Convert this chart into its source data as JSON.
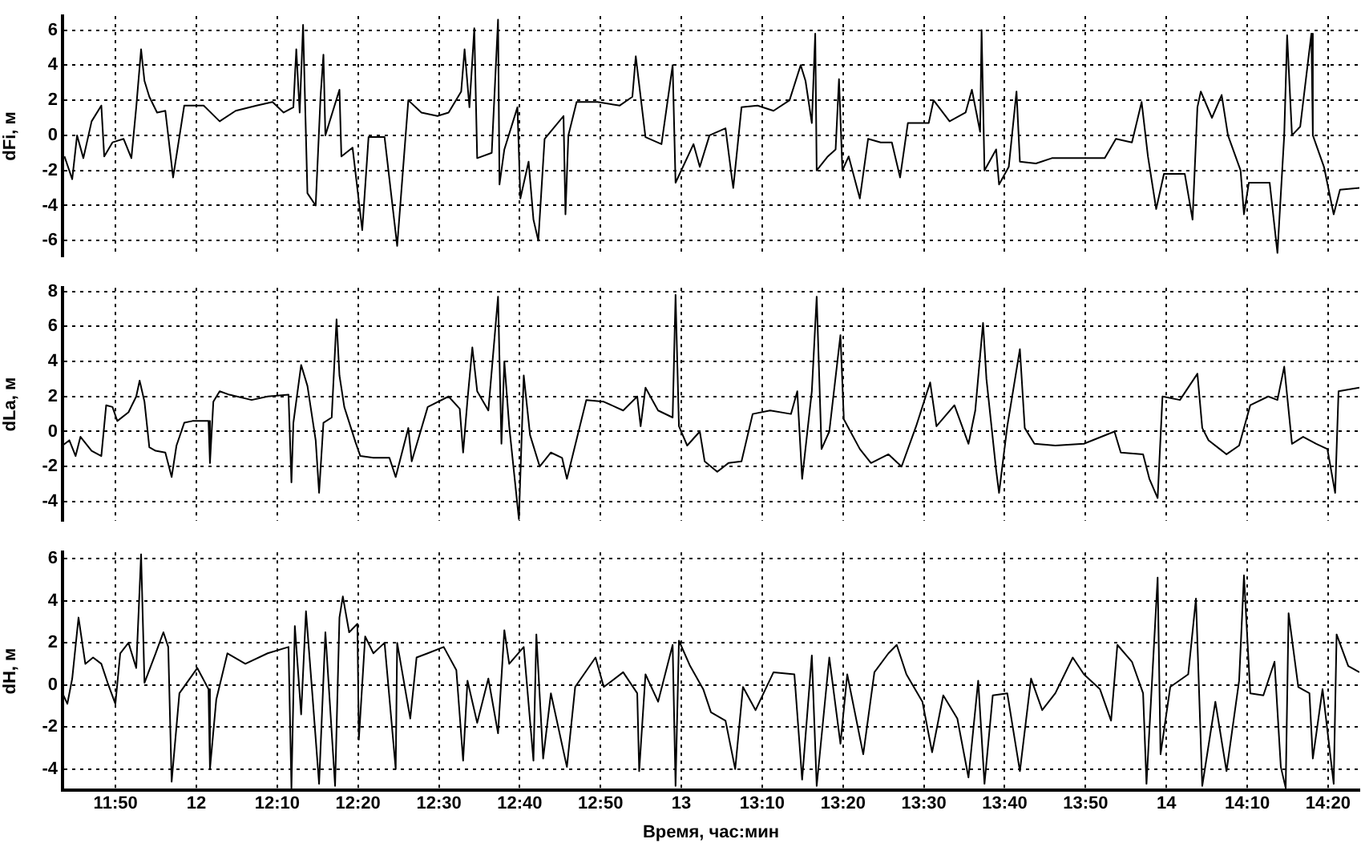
{
  "chart_data": [
    {
      "type": "line",
      "ylabel": "dFi, м",
      "xlim": [
        11.724,
        14.398
      ],
      "ylim": [
        -6.9,
        6.8
      ],
      "yticks": [
        -6,
        -4,
        -2,
        0,
        2,
        4,
        6
      ],
      "grid": true,
      "tick_labels": "y",
      "xticks": [
        {
          "value": 11.833333,
          "label": null
        },
        {
          "value": 12,
          "label": null
        },
        {
          "value": 12.166667,
          "label": null
        },
        {
          "value": 12.333333,
          "label": null
        },
        {
          "value": 12.5,
          "label": null
        },
        {
          "value": 12.666667,
          "label": null
        },
        {
          "value": 12.833333,
          "label": null
        },
        {
          "value": 13,
          "label": null
        },
        {
          "value": 13.166667,
          "label": null
        },
        {
          "value": 13.333333,
          "label": null
        },
        {
          "value": 13.5,
          "label": null
        },
        {
          "value": 13.666667,
          "label": null
        },
        {
          "value": 13.833333,
          "label": null
        },
        {
          "value": 14,
          "label": null
        },
        {
          "value": 14.166667,
          "label": null
        },
        {
          "value": 14.333333,
          "label": null
        }
      ],
      "series": [
        {
          "color": "#000000",
          "x": [
            11.728,
            11.744,
            11.754,
            11.767,
            11.784,
            11.804,
            11.81,
            11.827,
            11.85,
            11.866,
            11.876,
            11.886,
            11.893,
            11.903,
            11.919,
            11.936,
            11.952,
            11.975,
            12.015,
            12.048,
            12.081,
            12.124,
            12.157,
            12.18,
            12.2,
            12.206,
            12.213,
            12.22,
            12.229,
            12.246,
            12.256,
            12.262,
            12.266,
            12.295,
            12.299,
            12.322,
            12.342,
            12.355,
            12.388,
            12.414,
            12.437,
            12.464,
            12.497,
            12.52,
            12.546,
            12.553,
            12.563,
            12.573,
            12.579,
            12.609,
            12.622,
            12.625,
            12.635,
            12.662,
            12.668,
            12.685,
            12.695,
            12.705,
            12.718,
            12.757,
            12.761,
            12.767,
            12.784,
            12.827,
            12.873,
            12.899,
            12.906,
            12.926,
            12.959,
            12.982,
            12.988,
            13.025,
            13.038,
            13.058,
            13.091,
            13.104,
            13.107,
            13.124,
            13.157,
            13.19,
            13.223,
            13.246,
            13.256,
            13.269,
            13.276,
            13.279,
            13.302,
            13.318,
            13.325,
            13.332,
            13.345,
            13.368,
            13.385,
            13.411,
            13.434,
            13.451,
            13.467,
            13.51,
            13.52,
            13.553,
            13.586,
            13.599,
            13.616,
            13.619,
            13.625,
            13.649,
            13.655,
            13.675,
            13.691,
            13.698,
            13.731,
            13.764,
            13.817,
            13.873,
            13.896,
            13.929,
            13.949,
            13.962,
            13.979,
            13.995,
            14.038,
            14.054,
            14.064,
            14.071,
            14.094,
            14.114,
            14.127,
            14.153,
            14.16,
            14.17,
            14.213,
            14.229,
            14.243,
            14.249,
            14.259,
            14.276,
            14.299,
            14.302,
            14.325,
            14.345,
            14.358,
            14.398
          ],
          "values": [
            -1.2,
            -2.5,
            0,
            -1.3,
            0.8,
            1.7,
            -1.2,
            -0.4,
            -0.2,
            -1.3,
            1.6,
            4.9,
            3.1,
            2.2,
            1.3,
            1.4,
            -2.4,
            1.7,
            1.7,
            0.8,
            1.4,
            1.7,
            1.9,
            1.3,
            1.6,
            4.9,
            1.3,
            6.3,
            -3.3,
            -4,
            2.2,
            4.6,
            0,
            2.6,
            -1.2,
            -0.7,
            -5.4,
            -0.1,
            -0.1,
            -6.3,
            2,
            1.3,
            1.1,
            1.3,
            2.5,
            4.9,
            1.6,
            6.1,
            -1.3,
            -1,
            6.6,
            -2.8,
            -0.8,
            1.6,
            -3.6,
            -1.5,
            -4.8,
            -6,
            -0.2,
            1.1,
            -4.5,
            0,
            1.9,
            1.9,
            1.7,
            2.2,
            4.5,
            -0.1,
            -0.5,
            4,
            -2.7,
            -0.5,
            -1.8,
            0,
            0.4,
            -2.4,
            -3,
            1.6,
            1.7,
            1.4,
            2,
            4,
            3.1,
            0.7,
            5.8,
            -2,
            -1.2,
            -0.8,
            3.2,
            -2,
            -1.2,
            -3.6,
            -0.2,
            -0.4,
            -0.4,
            -2.4,
            0.7,
            0.7,
            2,
            0.8,
            1.3,
            2.6,
            0.2,
            6,
            -2,
            -0.8,
            -2.8,
            -1.8,
            2.5,
            -1.5,
            -1.6,
            -1.3,
            -1.3,
            -1.3,
            -0.2,
            -0.4,
            1.9,
            -1.2,
            -4.2,
            -2.2,
            -2.2,
            -4.8,
            1.6,
            2.5,
            1,
            2.3,
            0,
            -2,
            -4.5,
            -2.7,
            -2.7,
            -6.7,
            0,
            5.7,
            0,
            0.5,
            5.8,
            0,
            -1.8,
            -4.5,
            -3.1,
            -3
          ]
        }
      ]
    },
    {
      "type": "line",
      "ylabel": "dLa, м",
      "xlim": [
        11.724,
        14.398
      ],
      "ylim": [
        -5.1,
        8.2
      ],
      "yticks": [
        -4,
        -2,
        0,
        2,
        4,
        6,
        8
      ],
      "grid": true,
      "tick_labels": "y",
      "xticks": [
        {
          "value": 11.833333,
          "label": null
        },
        {
          "value": 12,
          "label": null
        },
        {
          "value": 12.166667,
          "label": null
        },
        {
          "value": 12.333333,
          "label": null
        },
        {
          "value": 12.5,
          "label": null
        },
        {
          "value": 12.666667,
          "label": null
        },
        {
          "value": 12.833333,
          "label": null
        },
        {
          "value": 13,
          "label": null
        },
        {
          "value": 13.166667,
          "label": null
        },
        {
          "value": 13.333333,
          "label": null
        },
        {
          "value": 13.5,
          "label": null
        },
        {
          "value": 13.666667,
          "label": null
        },
        {
          "value": 13.833333,
          "label": null
        },
        {
          "value": 14,
          "label": null
        },
        {
          "value": 14.166667,
          "label": null
        },
        {
          "value": 14.333333,
          "label": null
        }
      ],
      "series": [
        {
          "color": "#000000",
          "x": [
            11.724,
            11.738,
            11.751,
            11.761,
            11.784,
            11.804,
            11.814,
            11.827,
            11.837,
            11.86,
            11.876,
            11.883,
            11.893,
            11.903,
            11.916,
            11.936,
            11.949,
            11.959,
            11.975,
            11.992,
            12.025,
            12.028,
            12.035,
            12.048,
            12.068,
            12.114,
            12.147,
            12.19,
            12.196,
            12.2,
            12.216,
            12.229,
            12.246,
            12.253,
            12.262,
            12.279,
            12.289,
            12.295,
            12.305,
            12.328,
            12.338,
            12.365,
            12.398,
            12.411,
            12.437,
            12.444,
            12.477,
            12.52,
            12.543,
            12.55,
            12.559,
            12.569,
            12.579,
            12.602,
            12.622,
            12.629,
            12.635,
            12.645,
            12.665,
            12.675,
            12.688,
            12.708,
            12.731,
            12.754,
            12.764,
            12.804,
            12.84,
            12.88,
            12.909,
            12.916,
            12.926,
            12.952,
            12.982,
            12.988,
            12.995,
            13.012,
            13.038,
            13.048,
            13.074,
            13.097,
            13.124,
            13.147,
            13.183,
            13.226,
            13.239,
            13.249,
            13.269,
            13.279,
            13.289,
            13.305,
            13.328,
            13.335,
            13.368,
            13.391,
            13.427,
            13.454,
            13.484,
            13.513,
            13.526,
            13.563,
            13.592,
            13.606,
            13.622,
            13.629,
            13.649,
            13.655,
            13.672,
            13.698,
            13.708,
            13.728,
            13.771,
            13.83,
            13.893,
            13.906,
            13.952,
            13.965,
            13.982,
            13.992,
            14.028,
            14.064,
            14.074,
            14.087,
            14.124,
            14.15,
            14.173,
            14.21,
            14.229,
            14.243,
            14.259,
            14.282,
            14.309,
            14.332,
            14.348,
            14.355,
            14.398
          ],
          "values": [
            -0.8,
            -0.5,
            -1.4,
            -0.3,
            -1.1,
            -1.4,
            1.5,
            1.4,
            0.6,
            1.1,
            2,
            2.9,
            1.7,
            -0.9,
            -1.1,
            -1.2,
            -2.6,
            -0.8,
            0.5,
            0.6,
            0.6,
            -1.8,
            1.7,
            2.3,
            2.1,
            1.8,
            2,
            2.1,
            -2.9,
            0.5,
            3.8,
            2.6,
            -0.5,
            -3.5,
            0.5,
            0.8,
            6.4,
            3.2,
            1.4,
            -0.6,
            -1.4,
            -1.5,
            -1.5,
            -2.6,
            0.2,
            -1.7,
            1.4,
            2,
            1.3,
            -1.2,
            1.8,
            4.8,
            2.3,
            1.2,
            7.7,
            -0.7,
            4,
            0.3,
            -5,
            3.2,
            -0.2,
            -2,
            -1.2,
            -1.5,
            -2.7,
            1.8,
            1.7,
            1.2,
            2,
            0.3,
            2.5,
            1.2,
            0.8,
            7.8,
            0.3,
            -0.8,
            0,
            -1.7,
            -2.3,
            -1.8,
            -1.7,
            1,
            1.2,
            1,
            2.3,
            -2.7,
            2.3,
            7.7,
            -1,
            0,
            5.5,
            0.7,
            -1,
            -1.8,
            -1.3,
            -2,
            0.3,
            2.8,
            0.3,
            1.5,
            -0.7,
            1.2,
            6.2,
            3,
            -2.2,
            -3.5,
            0.3,
            4.7,
            0.2,
            -0.7,
            -0.8,
            -0.7,
            0,
            -1.2,
            -1.3,
            -2.7,
            -3.8,
            2,
            1.8,
            3.3,
            0.2,
            -0.5,
            -1.3,
            -0.8,
            1.5,
            2,
            1.8,
            3.7,
            -0.7,
            -0.3,
            -0.7,
            -1,
            -3.5,
            2.3,
            2.5
          ]
        }
      ]
    },
    {
      "type": "line",
      "ylabel": "dH, м",
      "xlabel": "Время, час:мин",
      "xlim": [
        11.724,
        14.398
      ],
      "ylim": [
        -5,
        6.3
      ],
      "yticks": [
        -4,
        -2,
        0,
        2,
        4,
        6
      ],
      "grid": true,
      "xticks": [
        {
          "value": 11.833333,
          "label": "11:50"
        },
        {
          "value": 12,
          "label": "12"
        },
        {
          "value": 12.166667,
          "label": "12:10"
        },
        {
          "value": 12.333333,
          "label": "12:20"
        },
        {
          "value": 12.5,
          "label": "12:30"
        },
        {
          "value": 12.666667,
          "label": "12:40"
        },
        {
          "value": 12.833333,
          "label": "12:50"
        },
        {
          "value": 13,
          "label": "13"
        },
        {
          "value": 13.166667,
          "label": "13:10"
        },
        {
          "value": 13.333333,
          "label": "13:20"
        },
        {
          "value": 13.5,
          "label": "13:30"
        },
        {
          "value": 13.666667,
          "label": "13:40"
        },
        {
          "value": 13.833333,
          "label": "13:50"
        },
        {
          "value": 14,
          "label": "14"
        },
        {
          "value": 14.166667,
          "label": "14:10"
        },
        {
          "value": 14.333333,
          "label": "14:20"
        }
      ],
      "series": [
        {
          "color": "#000000",
          "x": [
            11.724,
            11.734,
            11.744,
            11.757,
            11.771,
            11.787,
            11.804,
            11.817,
            11.833,
            11.843,
            11.86,
            11.876,
            11.886,
            11.893,
            11.916,
            11.932,
            11.942,
            11.949,
            11.965,
            12.002,
            12.025,
            12.028,
            12.041,
            12.064,
            12.101,
            12.147,
            12.19,
            12.196,
            12.203,
            12.216,
            12.226,
            12.239,
            12.253,
            12.266,
            12.286,
            12.295,
            12.302,
            12.315,
            12.332,
            12.335,
            12.348,
            12.365,
            12.388,
            12.411,
            12.414,
            12.441,
            12.454,
            12.477,
            12.51,
            12.536,
            12.55,
            12.559,
            12.579,
            12.602,
            12.622,
            12.635,
            12.645,
            12.675,
            12.695,
            12.701,
            12.715,
            12.731,
            12.764,
            12.781,
            12.823,
            12.84,
            12.88,
            12.909,
            12.913,
            12.926,
            12.952,
            12.982,
            12.988,
            12.995,
            13.018,
            13.045,
            13.061,
            13.091,
            13.111,
            13.127,
            13.153,
            13.19,
            13.233,
            13.249,
            13.269,
            13.279,
            13.305,
            13.328,
            13.342,
            13.375,
            13.398,
            13.427,
            13.444,
            13.464,
            13.497,
            13.517,
            13.54,
            13.569,
            13.592,
            13.612,
            13.625,
            13.642,
            13.672,
            13.698,
            13.721,
            13.744,
            13.771,
            13.807,
            13.83,
            13.863,
            13.886,
            13.899,
            13.929,
            13.952,
            13.959,
            13.982,
            13.988,
            14.008,
            14.045,
            14.061,
            14.074,
            14.101,
            14.124,
            14.15,
            14.16,
            14.173,
            14.2,
            14.223,
            14.236,
            14.246,
            14.252,
            14.272,
            14.295,
            14.302,
            14.322,
            14.345,
            14.351,
            14.375,
            14.398
          ],
          "values": [
            -0.4,
            -0.9,
            0.3,
            3.2,
            1,
            1.3,
            1,
            0.1,
            -0.9,
            1.5,
            2,
            0.8,
            6.2,
            0.1,
            1.5,
            2.5,
            1.8,
            -4.6,
            -0.4,
            0.8,
            -0.2,
            -4,
            -0.7,
            1.5,
            1,
            1.5,
            1.8,
            -4.9,
            2.8,
            -1.4,
            3.5,
            -0.4,
            -4.7,
            2.5,
            -4.8,
            3.2,
            4.2,
            2.5,
            2.9,
            -2.6,
            2.3,
            1.5,
            2,
            -4,
            2,
            -1.6,
            1.3,
            1.5,
            1.8,
            0.7,
            -3.6,
            0.2,
            -1.8,
            0.3,
            -2.3,
            2.6,
            1,
            1.8,
            -3.6,
            2.4,
            -3.5,
            -0.4,
            -3.9,
            -0.1,
            1.3,
            -0.1,
            0.6,
            -0.4,
            -4.1,
            0.5,
            -0.8,
            1.9,
            -4.8,
            2.1,
            0.9,
            -0.2,
            -1.3,
            -1.7,
            -4,
            -0.1,
            -1.2,
            0.6,
            0.5,
            -4.5,
            1.4,
            -4.8,
            1.3,
            -2.8,
            0.5,
            -3.3,
            0.6,
            1.5,
            1.9,
            0.5,
            -0.8,
            -3.2,
            -0.5,
            -1.6,
            -4.4,
            0.2,
            -4.7,
            -0.5,
            -0.4,
            -4.1,
            0.3,
            -1.2,
            -0.4,
            1.3,
            0.5,
            -0.2,
            -1.7,
            1.9,
            1.1,
            -0.4,
            -4.7,
            5.1,
            -3.3,
            -0.1,
            0.5,
            4.1,
            -4.8,
            -0.8,
            -4.1,
            0.2,
            5.2,
            -0.4,
            -0.5,
            1.1,
            -3.9,
            -4.9,
            3.4,
            -0.1,
            -0.4,
            -3.5,
            -0.2,
            -4.7,
            2.4,
            0.9,
            0.6
          ]
        }
      ]
    }
  ]
}
